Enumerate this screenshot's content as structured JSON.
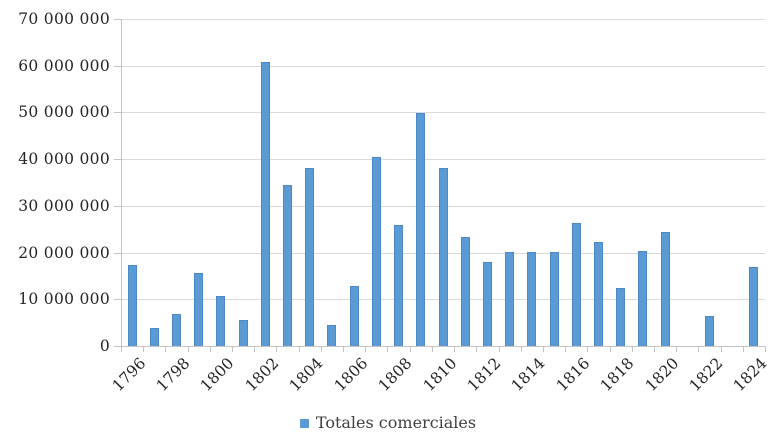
{
  "chart_data": {
    "type": "bar",
    "title": "",
    "series_name": "Totales comerciales",
    "categories": [
      "1796",
      "1797",
      "1798",
      "1799",
      "1800",
      "1801",
      "1802",
      "1803",
      "1804",
      "1805",
      "1806",
      "1807",
      "1808",
      "1809",
      "1810",
      "1811",
      "1812",
      "1813",
      "1814",
      "1815",
      "1816",
      "1817",
      "1818",
      "1819",
      "1820",
      "1821",
      "1822",
      "1823",
      "1824"
    ],
    "values": [
      17400000,
      3800000,
      6800000,
      15600000,
      10800000,
      5600000,
      60700000,
      34500000,
      38200000,
      4400000,
      12900000,
      40500000,
      26000000,
      49800000,
      38000000,
      23300000,
      17900000,
      20100000,
      20200000,
      20200000,
      26300000,
      22200000,
      12400000,
      20400000,
      24500000,
      0,
      6500000,
      0,
      16900000
    ],
    "xlabel": "",
    "ylabel": "",
    "ylim": [
      0,
      70000000
    ],
    "ytick_step": 10000000,
    "ytick_labels": [
      "0",
      "10 000 000",
      "20 000 000",
      "30 000 000",
      "40 000 000",
      "50 000 000",
      "60 000 000",
      "70 000 000"
    ],
    "xtick_labels": [
      "1796",
      "1798",
      "1800",
      "1802",
      "1804",
      "1806",
      "1808",
      "1810",
      "1812",
      "1814",
      "1816",
      "1818",
      "1820",
      "1822",
      "1824"
    ],
    "xtick_label_every": 2,
    "grid": true,
    "legend_position": "bottom",
    "colors": {
      "bar_fill": "#5B9BD5",
      "bar_border": "#4D88C4",
      "gridline": "#D9D9D9",
      "axis": "#C3C3C3",
      "tick_text": "#262626",
      "legend_text": "#3F3F3F",
      "background": "#FFFFFF"
    }
  }
}
